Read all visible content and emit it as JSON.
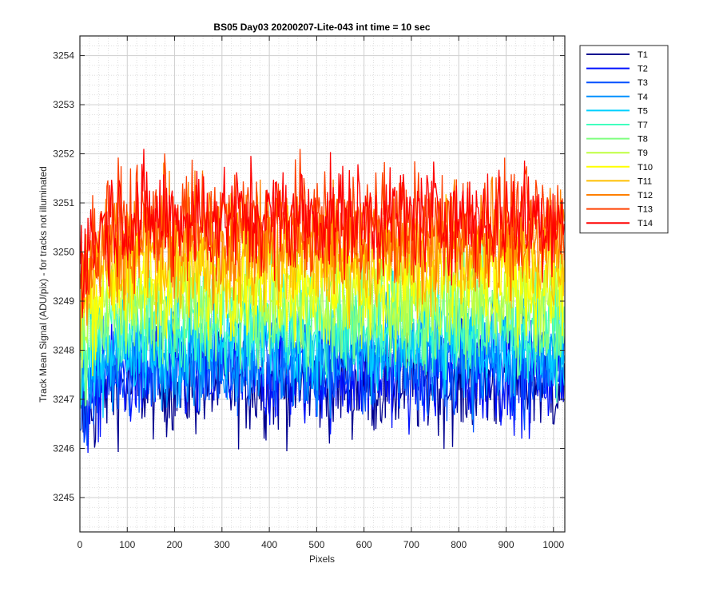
{
  "chart_data": {
    "type": "line",
    "title": "BS05 Day03 20200207-Lite-043 int time = 10 sec",
    "xlabel": "Pixels",
    "ylabel": "Track Mean Signal (ADU/pix) - for tracks not illuminated",
    "xlim": [
      0,
      1024
    ],
    "ylim": [
      3244.3,
      3254.4
    ],
    "xticks": [
      0,
      100,
      200,
      300,
      400,
      500,
      600,
      700,
      800,
      900,
      1000
    ],
    "yticks": [
      3245,
      3246,
      3247,
      3248,
      3249,
      3250,
      3251,
      3252,
      3253,
      3254
    ],
    "grid": true,
    "minor_grid": true,
    "legend_position": "outside-top-right",
    "series": [
      {
        "name": "T1",
        "color": "#00008f",
        "mean": 3247.3,
        "spread": 0.75
      },
      {
        "name": "T2",
        "color": "#0010ff",
        "mean": 3247.5,
        "spread": 0.75
      },
      {
        "name": "T3",
        "color": "#0050ff",
        "mean": 3247.7,
        "spread": 0.75
      },
      {
        "name": "T4",
        "color": "#0090ff",
        "mean": 3247.9,
        "spread": 0.75
      },
      {
        "name": "T5",
        "color": "#00d0ff",
        "mean": 3248.2,
        "spread": 0.75
      },
      {
        "name": "T7",
        "color": "#40ffbf",
        "mean": 3248.5,
        "spread": 0.75
      },
      {
        "name": "T8",
        "color": "#80ff80",
        "mean": 3248.8,
        "spread": 0.75
      },
      {
        "name": "T9",
        "color": "#bfff40",
        "mean": 3249.1,
        "spread": 0.75
      },
      {
        "name": "T10",
        "color": "#ffff00",
        "mean": 3249.5,
        "spread": 0.8
      },
      {
        "name": "T11",
        "color": "#ffbf00",
        "mean": 3249.9,
        "spread": 0.8
      },
      {
        "name": "T12",
        "color": "#ff8000",
        "mean": 3250.3,
        "spread": 0.8
      },
      {
        "name": "T13",
        "color": "#ff4000",
        "mean": 3250.6,
        "spread": 0.8
      },
      {
        "name": "T14",
        "color": "#ff0000",
        "mean": 3250.7,
        "spread": 0.8
      }
    ]
  }
}
